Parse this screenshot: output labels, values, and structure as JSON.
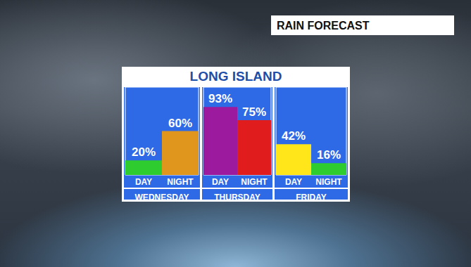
{
  "title": "RAIN FORECAST",
  "subtitle": "LONG ISLAND",
  "chart_data": [
    {
      "type": "bar",
      "title": "WEDNESDAY",
      "categories": [
        "DAY",
        "NIGHT"
      ],
      "values": [
        20,
        60
      ],
      "value_labels": [
        "20%",
        "60%"
      ],
      "colors": [
        "#2ecc2e",
        "#e0961c"
      ],
      "ylim": [
        0,
        120
      ],
      "yticks": [],
      "grid": false,
      "data_labels": true,
      "tick_labels": "x"
    },
    {
      "type": "bar",
      "title": "THURSDAY",
      "categories": [
        "DAY",
        "NIGHT"
      ],
      "values": [
        93,
        75
      ],
      "value_labels": [
        "93%",
        "75%"
      ],
      "colors": [
        "#9c1a9e",
        "#e01c1c"
      ],
      "ylim": [
        0,
        120
      ],
      "yticks": [],
      "grid": false,
      "data_labels": true,
      "tick_labels": "x"
    },
    {
      "type": "bar",
      "title": "FRIDAY",
      "categories": [
        "DAY",
        "NIGHT"
      ],
      "values": [
        42,
        16
      ],
      "value_labels": [
        "42%",
        "16%"
      ],
      "colors": [
        "#ffe61a",
        "#2ecc2e"
      ],
      "ylim": [
        0,
        120
      ],
      "yticks": [],
      "grid": false,
      "data_labels": true,
      "tick_labels": "x"
    }
  ]
}
